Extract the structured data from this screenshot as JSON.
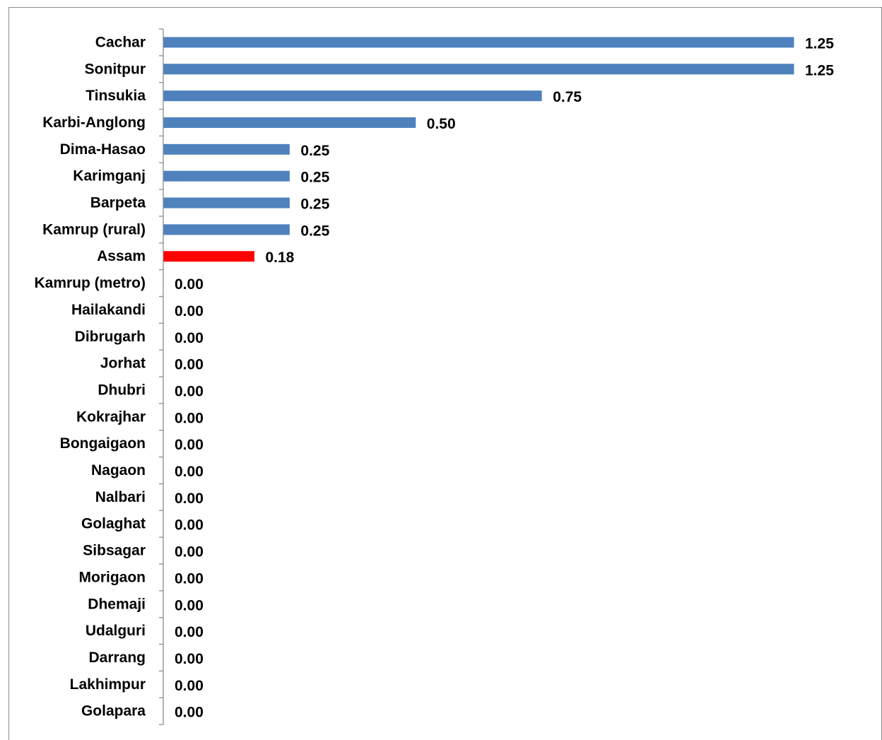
{
  "chart_data": {
    "type": "bar",
    "orientation": "horizontal",
    "categories": [
      "Cachar",
      "Sonitpur",
      "Tinsukia",
      "Karbi-Anglong",
      "Dima-Hasao",
      "Karimganj",
      "Barpeta",
      "Kamrup (rural)",
      "Assam",
      "Kamrup (metro)",
      "Hailakandi",
      "Dibrugarh",
      "Jorhat",
      "Dhubri",
      "Kokrajhar",
      "Bongaigaon",
      "Nagaon",
      "Nalbari",
      "Golaghat",
      "Sibsagar",
      "Morigaon",
      "Dhemaji",
      "Udalguri",
      "Darrang",
      "Lakhimpur",
      "Golapara"
    ],
    "values": [
      1.25,
      1.25,
      0.75,
      0.5,
      0.25,
      0.25,
      0.25,
      0.25,
      0.18,
      0.0,
      0.0,
      0.0,
      0.0,
      0.0,
      0.0,
      0.0,
      0.0,
      0.0,
      0.0,
      0.0,
      0.0,
      0.0,
      0.0,
      0.0,
      0.0,
      0.0
    ],
    "value_labels": [
      "1.25",
      "1.25",
      "0.75",
      "0.50",
      "0.25",
      "0.25",
      "0.25",
      "0.25",
      "0.18",
      "0.00",
      "0.00",
      "0.00",
      "0.00",
      "0.00",
      "0.00",
      "0.00",
      "0.00",
      "0.00",
      "0.00",
      "0.00",
      "0.00",
      "0.00",
      "0.00",
      "0.00",
      "0.00",
      "0.00"
    ],
    "highlight_category": "Assam",
    "colors": {
      "default": "#4f81bd",
      "highlight": "#ff0000"
    },
    "xlim": [
      0,
      1.25
    ],
    "grid": false,
    "legend": "none"
  }
}
